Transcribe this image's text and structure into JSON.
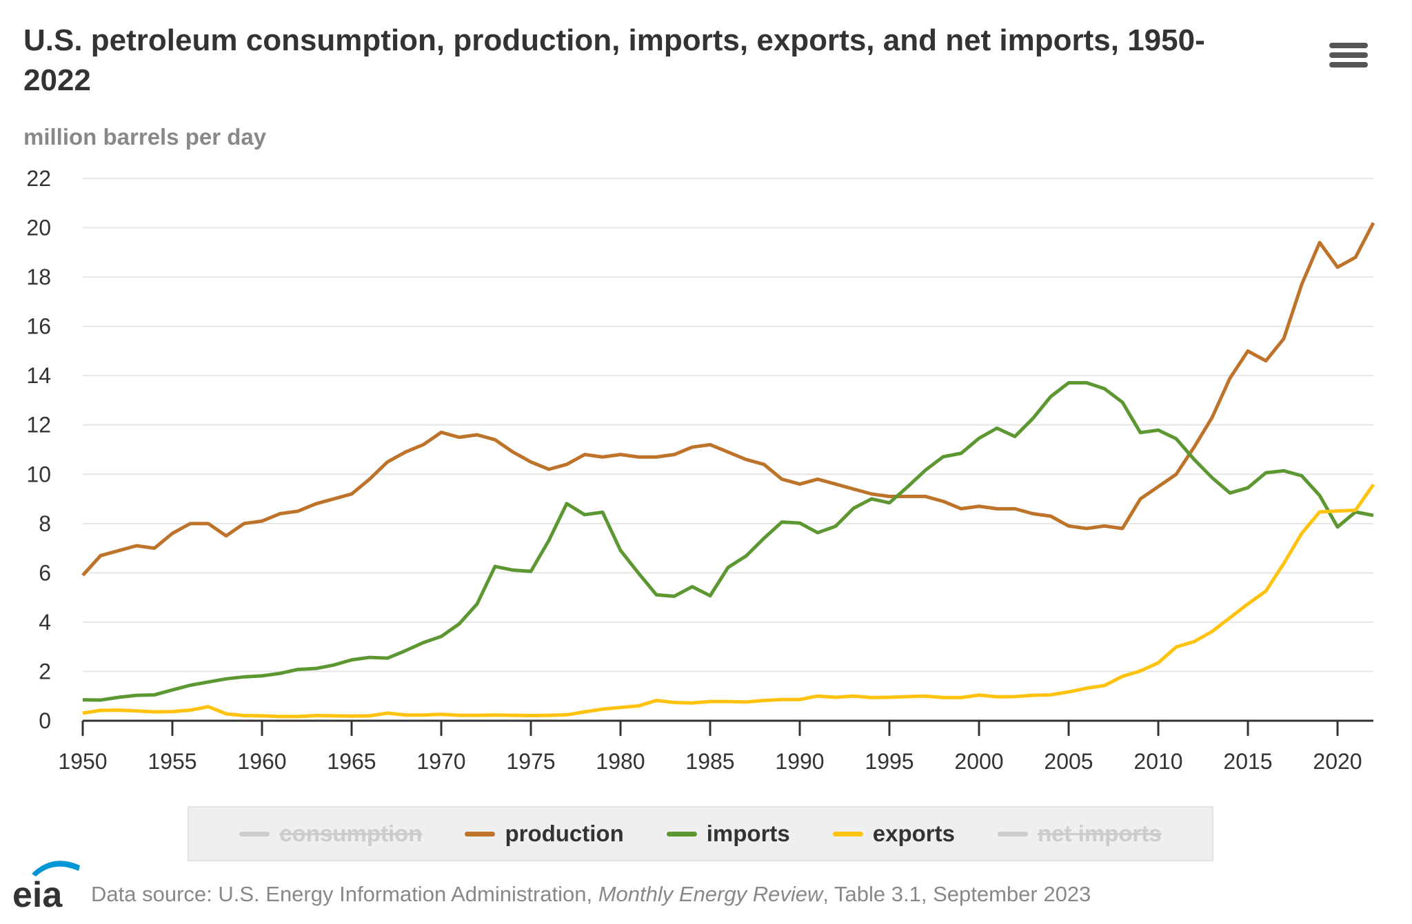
{
  "title": "U.S. petroleum consumption, production, imports, exports, and net imports, 1950-2022",
  "menu_icon": "hamburger-menu-icon",
  "footer": {
    "prefix": "Data source: U.S. Energy Information Administration, ",
    "italic": "Monthly Energy Review",
    "suffix": ", Table 3.1, September 2023"
  },
  "logo_text": "eia",
  "legend": [
    {
      "name": "consumption",
      "color": "#cccccc",
      "visible": false
    },
    {
      "name": "production",
      "color": "#bd732a",
      "visible": true
    },
    {
      "name": "imports",
      "color": "#5d9732",
      "visible": true
    },
    {
      "name": "exports",
      "color": "#ffc20e",
      "visible": true
    },
    {
      "name": "net imports",
      "color": "#cccccc",
      "visible": false
    }
  ],
  "chart_data": {
    "type": "line",
    "title": "U.S. petroleum consumption, production, imports, exports, and net imports, 1950-2022",
    "ylabel": "million barrels per day",
    "xlabel": "",
    "xlim": [
      1950,
      2022
    ],
    "ylim": [
      0,
      22
    ],
    "yticks": [
      0,
      2,
      4,
      6,
      8,
      10,
      12,
      14,
      16,
      18,
      20,
      22
    ],
    "xticks": [
      1950,
      1955,
      1960,
      1965,
      1970,
      1975,
      1980,
      1985,
      1990,
      1995,
      2000,
      2005,
      2010,
      2015,
      2020
    ],
    "grid": true,
    "legend_position": "bottom",
    "x_start": 1950,
    "series": [
      {
        "name": "production",
        "color": "#bd732a",
        "values": [
          5.9,
          6.7,
          6.9,
          7.1,
          7.0,
          7.6,
          8.0,
          8.0,
          7.5,
          8.0,
          8.1,
          8.4,
          8.5,
          8.8,
          9.0,
          9.2,
          9.8,
          10.5,
          10.9,
          11.2,
          11.7,
          11.5,
          11.6,
          11.4,
          10.9,
          10.5,
          10.2,
          10.4,
          10.8,
          10.7,
          10.8,
          10.7,
          10.7,
          10.8,
          11.1,
          11.2,
          10.9,
          10.6,
          10.4,
          9.8,
          9.6,
          9.8,
          9.6,
          9.4,
          9.2,
          9.1,
          9.1,
          9.1,
          8.9,
          8.6,
          8.7,
          8.6,
          8.6,
          8.4,
          8.3,
          7.9,
          7.8,
          7.9,
          7.8,
          9.0,
          9.5,
          10.0,
          11.1,
          12.3,
          13.9,
          15.0,
          14.6,
          15.5,
          17.7,
          19.4,
          18.4,
          18.8,
          20.2
        ]
      },
      {
        "name": "imports",
        "color": "#5d9732",
        "values": [
          0.85,
          0.84,
          0.95,
          1.03,
          1.05,
          1.25,
          1.44,
          1.57,
          1.7,
          1.78,
          1.82,
          1.92,
          2.08,
          2.12,
          2.26,
          2.47,
          2.57,
          2.54,
          2.84,
          3.17,
          3.42,
          3.93,
          4.74,
          6.26,
          6.11,
          6.06,
          7.31,
          8.81,
          8.36,
          8.46,
          6.91,
          5.99,
          5.11,
          5.05,
          5.44,
          5.07,
          6.22,
          6.68,
          7.4,
          8.06,
          8.02,
          7.63,
          7.89,
          8.62,
          9.0,
          8.84,
          9.48,
          10.16,
          10.71,
          10.85,
          11.46,
          11.87,
          11.53,
          12.26,
          13.15,
          13.71,
          13.71,
          13.47,
          12.92,
          11.69,
          11.79,
          11.44,
          10.6,
          9.86,
          9.24,
          9.45,
          10.06,
          10.14,
          9.94,
          9.14,
          7.86,
          8.47,
          8.33
        ]
      },
      {
        "name": "exports",
        "color": "#ffc20e",
        "values": [
          0.31,
          0.42,
          0.43,
          0.4,
          0.36,
          0.37,
          0.43,
          0.57,
          0.28,
          0.21,
          0.2,
          0.17,
          0.17,
          0.21,
          0.2,
          0.19,
          0.2,
          0.31,
          0.23,
          0.23,
          0.26,
          0.22,
          0.22,
          0.23,
          0.22,
          0.21,
          0.22,
          0.24,
          0.36,
          0.47,
          0.54,
          0.6,
          0.82,
          0.74,
          0.72,
          0.78,
          0.78,
          0.76,
          0.82,
          0.86,
          0.86,
          1.0,
          0.95,
          1.0,
          0.94,
          0.95,
          0.98,
          1.0,
          0.94,
          0.94,
          1.04,
          0.97,
          0.98,
          1.03,
          1.05,
          1.17,
          1.32,
          1.43,
          1.8,
          2.02,
          2.35,
          2.99,
          3.21,
          3.62,
          4.18,
          4.74,
          5.26,
          6.38,
          7.6,
          8.47,
          8.51,
          8.54,
          9.58
        ]
      }
    ]
  }
}
